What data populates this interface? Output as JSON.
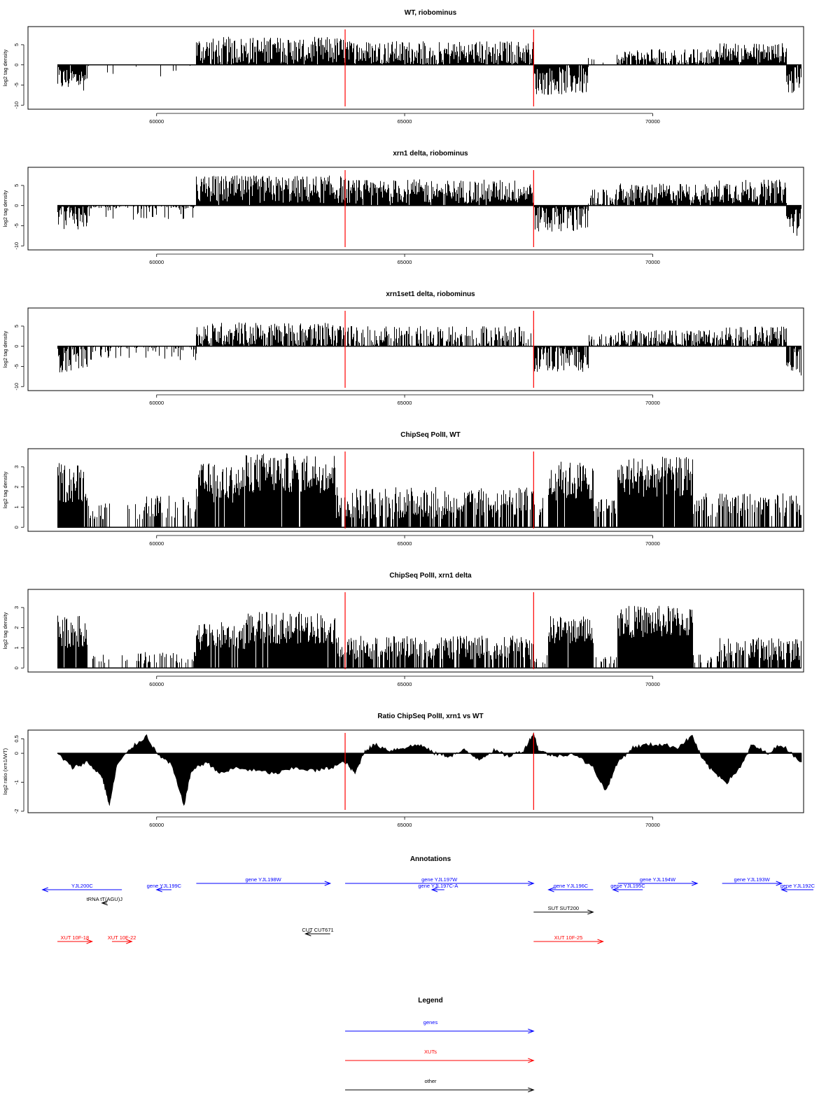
{
  "chart_data": [
    {
      "type": "bar",
      "title": "WT, riobominus",
      "ylabel": "log2 tag density",
      "xlim": [
        58000,
        73000
      ],
      "ylim": [
        -11,
        9.5
      ],
      "yticks": [
        -10,
        -5,
        0,
        5
      ],
      "xticks": [
        60000,
        65000,
        70000
      ],
      "markers": [
        63800,
        67600
      ],
      "segments": [
        {
          "from": 58000,
          "to": 58600,
          "level": -3.5,
          "jitter": 3,
          "density": 0.95
        },
        {
          "from": 58600,
          "to": 60800,
          "level": -1,
          "jitter": 2.5,
          "density": 0.08
        },
        {
          "from": 60800,
          "to": 63800,
          "level": 3.5,
          "jitter": 3.5,
          "density": 0.97
        },
        {
          "from": 63800,
          "to": 67600,
          "level": 3,
          "jitter": 3,
          "density": 0.93
        },
        {
          "from": 67600,
          "to": 68700,
          "level": -4,
          "jitter": 3.5,
          "density": 0.95
        },
        {
          "from": 68700,
          "to": 69300,
          "level": 0.5,
          "jitter": 2,
          "density": 0.2
        },
        {
          "from": 69300,
          "to": 71300,
          "level": 2,
          "jitter": 2,
          "density": 0.85
        },
        {
          "from": 71300,
          "to": 72700,
          "level": 3,
          "jitter": 2.5,
          "density": 0.95
        },
        {
          "from": 72700,
          "to": 73000,
          "level": -4,
          "jitter": 3.5,
          "density": 0.95
        }
      ]
    },
    {
      "type": "bar",
      "title": "xrn1 delta, riobominus",
      "ylabel": "log2 tag density",
      "xlim": [
        58000,
        73000
      ],
      "ylim": [
        -11,
        9.5
      ],
      "yticks": [
        -10,
        -5,
        0,
        5
      ],
      "xticks": [
        60000,
        65000,
        70000
      ],
      "markers": [
        63800,
        67600
      ],
      "segments": [
        {
          "from": 58000,
          "to": 58600,
          "level": -2.5,
          "jitter": 3.5,
          "density": 0.95
        },
        {
          "from": 58600,
          "to": 60800,
          "level": -0.5,
          "jitter": 3,
          "density": 0.45
        },
        {
          "from": 60800,
          "to": 63800,
          "level": 4,
          "jitter": 3.5,
          "density": 0.98
        },
        {
          "from": 63800,
          "to": 67600,
          "level": 3.5,
          "jitter": 3,
          "density": 0.97
        },
        {
          "from": 67600,
          "to": 68700,
          "level": -3,
          "jitter": 4,
          "density": 0.97
        },
        {
          "from": 68700,
          "to": 69300,
          "level": 1.5,
          "jitter": 2.5,
          "density": 0.8
        },
        {
          "from": 69300,
          "to": 71300,
          "level": 3,
          "jitter": 2.5,
          "density": 0.95
        },
        {
          "from": 71300,
          "to": 72700,
          "level": 3.5,
          "jitter": 3,
          "density": 0.97
        },
        {
          "from": 72700,
          "to": 73000,
          "level": -4,
          "jitter": 3.5,
          "density": 0.95
        }
      ]
    },
    {
      "type": "bar",
      "title": "xrn1set1 delta, riobominus",
      "ylabel": "log2 tag density",
      "xlim": [
        58000,
        73000
      ],
      "ylim": [
        -11,
        9.5
      ],
      "yticks": [
        -10,
        -5,
        0,
        5
      ],
      "xticks": [
        60000,
        65000,
        70000
      ],
      "markers": [
        63800,
        67600
      ],
      "segments": [
        {
          "from": 58000,
          "to": 58600,
          "level": -3,
          "jitter": 3.5,
          "density": 0.9
        },
        {
          "from": 58600,
          "to": 60800,
          "level": -1,
          "jitter": 2.5,
          "density": 0.3
        },
        {
          "from": 60800,
          "to": 63800,
          "level": 3,
          "jitter": 3,
          "density": 0.9
        },
        {
          "from": 63800,
          "to": 67600,
          "level": 2.5,
          "jitter": 2.5,
          "density": 0.6
        },
        {
          "from": 67600,
          "to": 68700,
          "level": -3,
          "jitter": 3.5,
          "density": 0.85
        },
        {
          "from": 68700,
          "to": 69300,
          "level": 1,
          "jitter": 2,
          "density": 0.5
        },
        {
          "from": 69300,
          "to": 71300,
          "level": 2,
          "jitter": 2,
          "density": 0.8
        },
        {
          "from": 71300,
          "to": 72700,
          "level": 2.5,
          "jitter": 2.5,
          "density": 0.85
        },
        {
          "from": 72700,
          "to": 73000,
          "level": -4,
          "jitter": 3.5,
          "density": 0.9
        }
      ]
    },
    {
      "type": "bar",
      "title": "ChipSeq PolII, WT",
      "ylabel": "log2 tag density",
      "xlim": [
        58000,
        73000
      ],
      "ylim": [
        -0.2,
        3.9
      ],
      "yticks": [
        0,
        1,
        2,
        3
      ],
      "xticks": [
        60000,
        65000,
        70000
      ],
      "markers": [
        63800,
        67600
      ],
      "segments": [
        {
          "from": 58000,
          "to": 58600,
          "level": 2.2,
          "jitter": 1,
          "density": 0.95
        },
        {
          "from": 58600,
          "to": 59000,
          "level": 0.8,
          "jitter": 0.4,
          "density": 0.4
        },
        {
          "from": 59000,
          "to": 59600,
          "level": 0.9,
          "jitter": 0.3,
          "density": 0.08
        },
        {
          "from": 59600,
          "to": 60800,
          "level": 1,
          "jitter": 0.6,
          "density": 0.5
        },
        {
          "from": 60800,
          "to": 61800,
          "level": 2.2,
          "jitter": 1,
          "density": 0.95
        },
        {
          "from": 61800,
          "to": 63600,
          "level": 2.7,
          "jitter": 1,
          "density": 0.98
        },
        {
          "from": 63600,
          "to": 67600,
          "level": 1.2,
          "jitter": 0.8,
          "density": 0.75
        },
        {
          "from": 67600,
          "to": 67900,
          "level": 1,
          "jitter": 0.5,
          "density": 0.3
        },
        {
          "from": 67900,
          "to": 68800,
          "level": 2.3,
          "jitter": 1,
          "density": 0.95
        },
        {
          "from": 68800,
          "to": 69300,
          "level": 1,
          "jitter": 0.5,
          "density": 0.6
        },
        {
          "from": 69300,
          "to": 70800,
          "level": 2.5,
          "jitter": 1,
          "density": 0.98
        },
        {
          "from": 70800,
          "to": 73000,
          "level": 1.1,
          "jitter": 0.6,
          "density": 0.6
        }
      ]
    },
    {
      "type": "bar",
      "title": "ChipSeq PolII, xrn1 delta",
      "ylabel": "log2 tag density",
      "xlim": [
        58000,
        73000
      ],
      "ylim": [
        -0.2,
        3.9
      ],
      "yticks": [
        0,
        1,
        2,
        3
      ],
      "xticks": [
        60000,
        65000,
        70000
      ],
      "markers": [
        63800,
        67600
      ],
      "segments": [
        {
          "from": 58000,
          "to": 58600,
          "level": 1.8,
          "jitter": 0.8,
          "density": 0.95
        },
        {
          "from": 58600,
          "to": 59000,
          "level": 0.4,
          "jitter": 0.3,
          "density": 0.2
        },
        {
          "from": 59000,
          "to": 59600,
          "level": 0.4,
          "jitter": 0.3,
          "density": 0.1
        },
        {
          "from": 59600,
          "to": 60800,
          "level": 0.4,
          "jitter": 0.4,
          "density": 0.45
        },
        {
          "from": 60800,
          "to": 61800,
          "level": 1.6,
          "jitter": 0.7,
          "density": 0.95
        },
        {
          "from": 61800,
          "to": 63600,
          "level": 2,
          "jitter": 0.8,
          "density": 0.98
        },
        {
          "from": 63600,
          "to": 67600,
          "level": 1,
          "jitter": 0.6,
          "density": 0.8
        },
        {
          "from": 67600,
          "to": 67900,
          "level": 0.4,
          "jitter": 0.3,
          "density": 0.3
        },
        {
          "from": 67900,
          "to": 68800,
          "level": 1.9,
          "jitter": 0.7,
          "density": 0.97
        },
        {
          "from": 68800,
          "to": 69300,
          "level": 0.4,
          "jitter": 0.3,
          "density": 0.4
        },
        {
          "from": 69300,
          "to": 70800,
          "level": 2.3,
          "jitter": 0.8,
          "density": 0.98
        },
        {
          "from": 70800,
          "to": 71300,
          "level": 0.3,
          "jitter": 0.2,
          "density": 0.2
        },
        {
          "from": 71300,
          "to": 73000,
          "level": 0.9,
          "jitter": 0.6,
          "density": 0.8
        }
      ]
    },
    {
      "type": "area",
      "title": "Ratio ChipSeq PolII, xrn1 vs WT",
      "ylabel": "log2 ratio (xrn1/WT)",
      "xlim": [
        58000,
        73000
      ],
      "ylim": [
        -2.05,
        0.8
      ],
      "yticks": [
        -2.0,
        -1.0,
        0.0,
        0.5
      ],
      "xticks": [
        60000,
        65000,
        70000
      ],
      "markers": [
        63800,
        67600
      ],
      "x": [
        58000,
        58300,
        58600,
        58900,
        59050,
        59200,
        59500,
        59800,
        60000,
        60300,
        60550,
        60700,
        61000,
        61300,
        61600,
        62000,
        62400,
        62800,
        63200,
        63500,
        63800,
        64000,
        64200,
        64400,
        64700,
        65000,
        65300,
        65600,
        65900,
        66200,
        66500,
        66800,
        67100,
        67400,
        67600,
        67700,
        68000,
        68400,
        68800,
        69050,
        69300,
        69600,
        69900,
        70200,
        70500,
        70800,
        71000,
        71200,
        71500,
        71800,
        72000,
        72300,
        72600,
        73000
      ],
      "y": [
        0.0,
        -0.5,
        -0.3,
        -0.8,
        -1.8,
        -0.4,
        0.2,
        0.6,
        0.0,
        -0.4,
        -1.8,
        -0.6,
        -0.3,
        -0.7,
        -0.5,
        -0.6,
        -0.7,
        -0.5,
        -0.6,
        -0.5,
        -0.3,
        -0.7,
        0.1,
        0.3,
        0.1,
        0.2,
        0.3,
        0.0,
        -0.1,
        0.1,
        -0.2,
        0.1,
        -0.1,
        0.1,
        0.7,
        0.1,
        -0.1,
        0.0,
        -0.5,
        -1.3,
        -0.3,
        0.2,
        0.3,
        0.3,
        0.2,
        0.6,
        -0.2,
        -0.6,
        -1.0,
        -0.4,
        0.3,
        0.0,
        0.3,
        -0.3
      ]
    }
  ],
  "annotations": {
    "title": "Annotations",
    "features": [
      {
        "label": "YJL200C",
        "class": "gene",
        "strand": "-",
        "from": 57700,
        "to": 59300,
        "row": 0
      },
      {
        "label": "gene YJL199C",
        "class": "gene",
        "strand": "-",
        "from": 60000,
        "to": 60300,
        "row": 0
      },
      {
        "label": "gene YJL198W",
        "class": "gene",
        "strand": "+",
        "from": 60800,
        "to": 63500,
        "row": -1
      },
      {
        "label": "gene YJL197W",
        "class": "gene",
        "strand": "+",
        "from": 63800,
        "to": 67600,
        "row": -1
      },
      {
        "label": "gene YJL197C-A",
        "class": "gene",
        "strand": "-",
        "from": 65550,
        "to": 65800,
        "row": 0
      },
      {
        "label": "gene YJL196C",
        "class": "gene",
        "strand": "-",
        "from": 67900,
        "to": 68800,
        "row": 0
      },
      {
        "label": "gene YJL195C",
        "class": "gene",
        "strand": "-",
        "from": 69200,
        "to": 69800,
        "row": 0
      },
      {
        "label": "gene YJL194W",
        "class": "gene",
        "strand": "+",
        "from": 69300,
        "to": 70900,
        "row": -1
      },
      {
        "label": "gene YJL193W",
        "class": "gene",
        "strand": "+",
        "from": 71400,
        "to": 72600,
        "row": -1
      },
      {
        "label": "gene YJL192C",
        "class": "gene",
        "strand": "-",
        "from": 72600,
        "to": 73600,
        "row": 0
      },
      {
        "label": "tRNA tT(AGU)J",
        "class": "other",
        "strand": "-",
        "from": 58900,
        "to": 59000,
        "row": 1
      },
      {
        "label": "SUT SUT200",
        "class": "other",
        "strand": "+",
        "from": 67600,
        "to": 68800,
        "row": 2
      },
      {
        "label": "CUT CUT671",
        "class": "other",
        "strand": "-",
        "from": 63000,
        "to": 63500,
        "row": 3
      },
      {
        "label": "XUT 10F-18",
        "class": "xut",
        "strand": "+",
        "from": 58000,
        "to": 58700,
        "row": 4
      },
      {
        "label": "XUT 10F-22",
        "class": "xut",
        "strand": "+",
        "from": 59100,
        "to": 59500,
        "row": 4
      },
      {
        "label": "XUT 10F-25",
        "class": "xut",
        "strand": "+",
        "from": 67600,
        "to": 69000,
        "row": 4
      }
    ]
  },
  "legend": {
    "title": "Legend",
    "entries": [
      {
        "label": "genes",
        "class": "gene"
      },
      {
        "label": "XUTs",
        "class": "xut"
      },
      {
        "label": "other",
        "class": "other"
      }
    ]
  },
  "colors": {
    "gene": "#0000ff",
    "xut": "#ff0000",
    "other": "#000000",
    "marker": "#ff0000",
    "bar": "#000000"
  }
}
